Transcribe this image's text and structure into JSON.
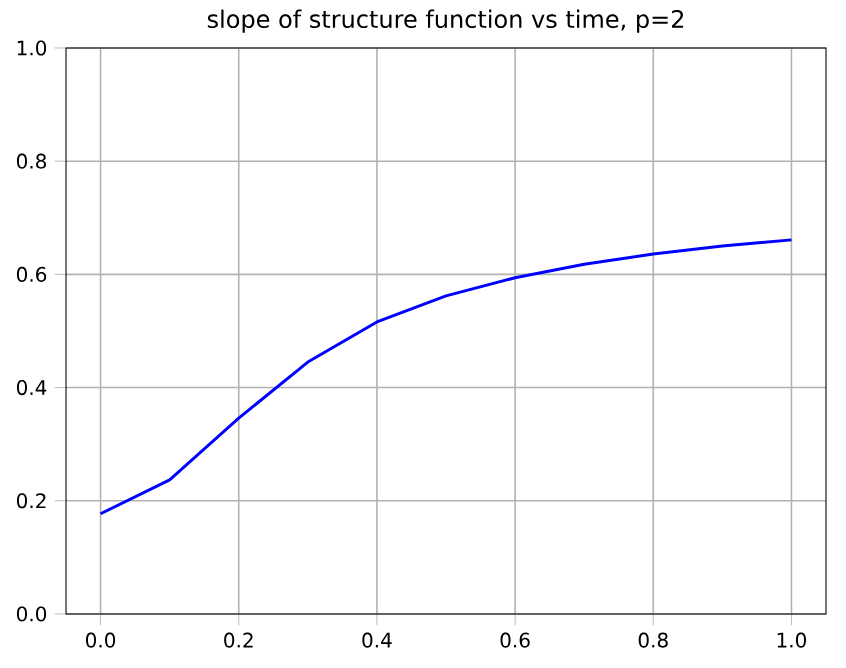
{
  "chart_data": {
    "type": "line",
    "title": "slope of structure function vs time, p=2",
    "x": [
      0.0,
      0.1,
      0.2,
      0.3,
      0.4,
      0.5,
      0.6,
      0.7,
      0.8,
      0.9,
      1.0
    ],
    "series": [
      {
        "color": "#0000ff",
        "values": [
          0.177,
          0.237,
          0.346,
          0.445,
          0.516,
          0.562,
          0.594,
          0.618,
          0.636,
          0.65,
          0.661
        ]
      }
    ],
    "xlim": [
      -0.05,
      1.05
    ],
    "ylim": [
      0,
      1
    ],
    "xticks": [
      {
        "value": 0,
        "label": "0.0"
      },
      {
        "value": 0.2,
        "label": "0.2"
      },
      {
        "value": 0.4,
        "label": "0.4"
      },
      {
        "value": 0.6,
        "label": "0.6"
      },
      {
        "value": 0.8,
        "label": "0.8"
      },
      {
        "value": 1,
        "label": "1.0"
      }
    ],
    "yticks": [
      {
        "value": 0,
        "label": "0.0"
      },
      {
        "value": 0.2,
        "label": "0.2"
      },
      {
        "value": 0.4,
        "label": "0.4"
      },
      {
        "value": 0.6,
        "label": "0.6"
      },
      {
        "value": 0.8,
        "label": "0.8"
      },
      {
        "value": 1,
        "label": "1.0"
      }
    ],
    "grid": true,
    "marker": "none",
    "line_style": "solid"
  }
}
